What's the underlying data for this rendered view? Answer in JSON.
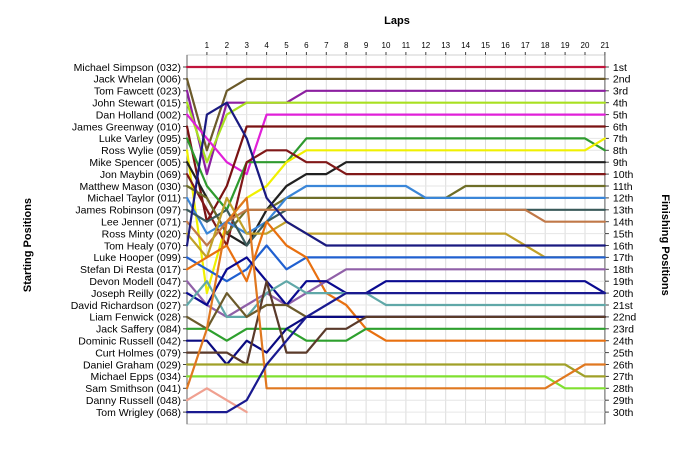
{
  "chart_data": {
    "type": "line",
    "title": "Laps",
    "ylabel_left": "Starting Positions",
    "ylabel_right": "Finishing Positions",
    "laps": [
      1,
      2,
      3,
      4,
      5,
      6,
      7,
      8,
      9,
      10,
      11,
      12,
      13,
      14,
      15,
      16,
      17,
      18,
      19,
      20,
      21
    ],
    "starting_positions": [
      "Michael Simpson (032)",
      "Jack Whelan (006)",
      "Tom Fawcett (023)",
      "John Stewart (015)",
      "Dan Holland (002)",
      "James Greenway (010)",
      "Luke Varley (095)",
      "Ross Wylie (059)",
      "Mike Spencer (005)",
      "Jon Maybin (069)",
      "Matthew Mason (030)",
      "Michael Taylor (011)",
      "James Robinson (097)",
      "Lee Jenner (071)",
      "Ross Minty (020)",
      "Tom Healy (070)",
      "Luke Hooper (099)",
      "Stefan Di Resta (017)",
      "Devon Modell (047)",
      "Joseph Reilly (022)",
      "David Richardson (027)",
      "Liam Fenwick (028)",
      "Jack Saffery (084)",
      "Dominic Russell (042)",
      "Curt Holmes (079)",
      "Daniel Graham (029)",
      "Michael Epps (034)",
      "Sam Smithson (041)",
      "Danny Russell (048)",
      "Tom Wrigley (068)"
    ],
    "finishing_positions": [
      "1st",
      "2nd",
      "3rd",
      "4th",
      "5th",
      "6th",
      "7th",
      "8th",
      "9th",
      "10th",
      "11th",
      "12th",
      "13th",
      "14th",
      "15th",
      "16th",
      "17th",
      "18th",
      "19th",
      "20th",
      "21st",
      "22nd",
      "23rd",
      "24th",
      "25th",
      "26th",
      "27th",
      "28th",
      "29th",
      "30th"
    ],
    "series": [
      {
        "color": "#c0143c",
        "positions": [
          1,
          1,
          1,
          1,
          1,
          1,
          1,
          1,
          1,
          1,
          1,
          1,
          1,
          1,
          1,
          1,
          1,
          1,
          1,
          1,
          1,
          1
        ]
      },
      {
        "color": "#6b5a2a",
        "positions": [
          2,
          8,
          3,
          2,
          2,
          2,
          2,
          2,
          2,
          2,
          2,
          2,
          2,
          2,
          2,
          2,
          2,
          2,
          2,
          2,
          2,
          2
        ]
      },
      {
        "color": "#8c1fa0",
        "positions": [
          3,
          10,
          4,
          4,
          4,
          4,
          3,
          3,
          3,
          3,
          3,
          3,
          3,
          3,
          3,
          3,
          3,
          3,
          3,
          3,
          3,
          3
        ]
      },
      {
        "color": "#a8e020",
        "positions": [
          4,
          9,
          5,
          4,
          4,
          4,
          4,
          4,
          4,
          4,
          4,
          4,
          4,
          4,
          4,
          4,
          4,
          4,
          4,
          4,
          4,
          4
        ]
      },
      {
        "color": "#e020d8",
        "positions": [
          5,
          7,
          9,
          10,
          5,
          5,
          5,
          5,
          5,
          5,
          5,
          5,
          5,
          5,
          5,
          5,
          5,
          5,
          5,
          5,
          5,
          5
        ]
      },
      {
        "color": "#7a1212",
        "positions": [
          6,
          14,
          11,
          6,
          6,
          6,
          6,
          6,
          6,
          6,
          6,
          6,
          6,
          6,
          6,
          6,
          6,
          6,
          6,
          6,
          6,
          6
        ]
      },
      {
        "color": "#2e9a2e",
        "positions": [
          7,
          11,
          13,
          9,
          9,
          9,
          7,
          7,
          7,
          7,
          7,
          7,
          7,
          7,
          7,
          7,
          7,
          7,
          7,
          7,
          7,
          8
        ]
      },
      {
        "color": "#f0f000",
        "positions": [
          8,
          20,
          14,
          12,
          11,
          9,
          8,
          8,
          8,
          8,
          8,
          8,
          8,
          8,
          8,
          8,
          8,
          8,
          8,
          8,
          8,
          7
        ]
      },
      {
        "color": "#202020",
        "positions": [
          9,
          12,
          15,
          16,
          13,
          11,
          10,
          10,
          9,
          9,
          9,
          9,
          9,
          9,
          9,
          9,
          9,
          9,
          9,
          9,
          9,
          9
        ]
      },
      {
        "color": "#801818",
        "positions": [
          10,
          13,
          16,
          9,
          8,
          8,
          9,
          9,
          10,
          10,
          10,
          10,
          10,
          10,
          10,
          10,
          10,
          10,
          10,
          10,
          10,
          10
        ]
      },
      {
        "color": "#6e6e28",
        "positions": [
          11,
          12,
          15,
          13,
          13,
          12,
          12,
          12,
          12,
          12,
          12,
          12,
          12,
          12,
          11,
          11,
          11,
          11,
          11,
          11,
          11,
          11
        ]
      },
      {
        "color": "#3a86d8",
        "positions": [
          12,
          15,
          14,
          15,
          14,
          12,
          11,
          11,
          11,
          11,
          11,
          11,
          12,
          12,
          12,
          12,
          12,
          12,
          12,
          12,
          12,
          12
        ]
      },
      {
        "color": "#3a5a5a",
        "positions": [
          13,
          14,
          13,
          16,
          14,
          13,
          13,
          13,
          13,
          13,
          13,
          13,
          13,
          13,
          13,
          13,
          13,
          13,
          13,
          13,
          13,
          13
        ]
      },
      {
        "color": "#c07848",
        "positions": [
          14,
          16,
          14,
          13,
          13,
          13,
          13,
          13,
          13,
          13,
          13,
          13,
          13,
          13,
          13,
          13,
          13,
          13,
          14,
          14,
          14,
          14
        ]
      },
      {
        "color": "#c0a028",
        "positions": [
          15,
          17,
          12,
          15,
          15,
          14,
          15,
          15,
          15,
          15,
          15,
          15,
          15,
          15,
          15,
          15,
          15,
          16,
          17,
          17,
          17,
          17
        ]
      },
      {
        "color": "#1a1a80",
        "positions": [
          16,
          5,
          4,
          7,
          12,
          14,
          15,
          16,
          16,
          16,
          16,
          16,
          16,
          16,
          16,
          16,
          16,
          16,
          16,
          16,
          16,
          16
        ]
      },
      {
        "color": "#2060d0",
        "positions": [
          17,
          18,
          19,
          18,
          16,
          18,
          17,
          17,
          17,
          17,
          17,
          17,
          17,
          17,
          17,
          17,
          17,
          17,
          17,
          17,
          17,
          17
        ]
      },
      {
        "color": "#e87010",
        "positions": [
          18,
          17,
          16,
          19,
          14,
          16,
          17,
          20,
          21,
          23,
          24,
          24,
          24,
          24,
          24,
          24,
          24,
          24,
          24,
          24,
          24,
          24
        ]
      },
      {
        "color": "#9060a8",
        "positions": [
          19,
          21,
          22,
          21,
          20,
          21,
          20,
          19,
          18,
          18,
          18,
          18,
          18,
          18,
          18,
          18,
          18,
          18,
          18,
          18,
          18,
          18
        ]
      },
      {
        "color": "#0a0a90",
        "positions": [
          20,
          21,
          18,
          17,
          19,
          21,
          19,
          19,
          20,
          20,
          19,
          19,
          19,
          19,
          19,
          19,
          19,
          19,
          19,
          19,
          19,
          20
        ]
      },
      {
        "color": "#60a8a8",
        "positions": [
          21,
          19,
          22,
          22,
          20,
          19,
          20,
          20,
          20,
          20,
          21,
          21,
          21,
          21,
          21,
          21,
          21,
          21,
          21,
          21,
          21,
          21
        ]
      },
      {
        "color": "#6b5a2a",
        "positions": [
          22,
          23,
          20,
          22,
          21,
          21,
          22,
          22,
          22,
          22,
          22,
          22,
          22,
          22,
          22,
          22,
          22,
          22,
          22,
          22,
          22,
          22
        ]
      },
      {
        "color": "#2ea02e",
        "positions": [
          23,
          23,
          24,
          23,
          23,
          23,
          24,
          24,
          24,
          23,
          23,
          23,
          23,
          23,
          23,
          23,
          23,
          23,
          23,
          23,
          23,
          23
        ]
      },
      {
        "color": "#0a0a80",
        "positions": [
          24,
          24,
          26,
          24,
          25,
          23,
          22,
          22,
          22,
          22,
          22,
          22,
          22,
          22,
          22,
          22,
          22,
          22,
          22,
          22,
          22,
          22
        ]
      },
      {
        "color": "#5a3a2a",
        "positions": [
          25,
          25,
          25,
          26,
          19,
          25,
          25,
          23,
          23,
          22,
          22,
          22,
          22,
          22,
          22,
          22,
          22,
          22,
          22,
          22,
          22,
          22
        ]
      },
      {
        "color": "#a0a028",
        "positions": [
          26,
          26,
          26,
          26,
          26,
          26,
          26,
          26,
          26,
          26,
          26,
          26,
          26,
          26,
          26,
          26,
          26,
          26,
          26,
          26,
          27,
          27
        ]
      },
      {
        "color": "#80e030",
        "positions": [
          27,
          27,
          27,
          27,
          27,
          27,
          27,
          27,
          27,
          27,
          27,
          27,
          27,
          27,
          27,
          27,
          27,
          27,
          27,
          28,
          28,
          28
        ]
      },
      {
        "color": "#e07820",
        "positions": [
          28,
          23,
          14,
          12,
          28,
          28,
          28,
          28,
          28,
          28,
          28,
          28,
          28,
          28,
          28,
          28,
          28,
          28,
          28,
          27,
          26,
          26
        ]
      },
      {
        "color": "#f0a090",
        "positions": [
          29,
          28,
          29,
          30
        ]
      },
      {
        "color": "#1a1a90",
        "positions": [
          30,
          30,
          30,
          29,
          26,
          24,
          22,
          21,
          20,
          20,
          20,
          20,
          20,
          20,
          20,
          20,
          20,
          20,
          20,
          20,
          20,
          20
        ]
      }
    ]
  }
}
